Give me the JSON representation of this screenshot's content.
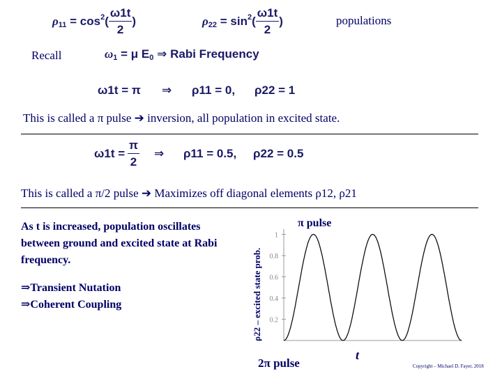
{
  "header_label": "populations",
  "recall_label": "Recall",
  "eq_rho11": {
    "lhs": "ρ",
    "sub": "11",
    "rhs": "= cos",
    "sup": "2",
    "open": "(",
    "num": "ω1t",
    "den": "2",
    "close": ")"
  },
  "eq_rho22": {
    "lhs": "ρ",
    "sub": "22",
    "rhs": "= sin",
    "sup": "2",
    "open": "(",
    "num": "ω1t",
    "den": "2",
    "close": ")"
  },
  "eq_rabi": {
    "lhs": "ω",
    "sub": "1",
    "rhs": "= μ E",
    "sub0": "0",
    "arrow": "⇒",
    "text": "Rabi Frequency"
  },
  "eq_pi": {
    "lhs": "ω1t = π",
    "arrow": "⇒",
    "r11": "ρ11 = 0,",
    "r22": "ρ22 = 1"
  },
  "pi_pulse_text": "This is called a π pulse ➔ inversion, all population in excited state.",
  "eq_halfpi": {
    "lhs": "ω1t =",
    "num": "π",
    "den": "2",
    "arrow": "⇒",
    "r11": "ρ11 = 0.5,",
    "r22": "ρ22 = 0.5"
  },
  "halfpi_text": "This is called a π/2 pulse ➔ Maximizes off diagonal elements ρ12, ρ21",
  "left_text": {
    "para": "As t is increased, population oscillates between ground and excited state at Rabi frequency.",
    "bullet1": "⇒Transient Nutation",
    "bullet2": "⇒Coherent Coupling"
  },
  "chart_data": {
    "type": "line",
    "ylabel": "ρ22 – excited state prob.",
    "xlabel": "t",
    "yticks": [
      "1",
      "0.8",
      "0.6",
      "0.4",
      "0.2"
    ],
    "ylim": [
      0,
      1.05
    ],
    "annotations": [
      "π pulse",
      "2π pulse"
    ],
    "cycles": 3
  },
  "copyright": "Copyright – Michael D. Fayer, 2018"
}
